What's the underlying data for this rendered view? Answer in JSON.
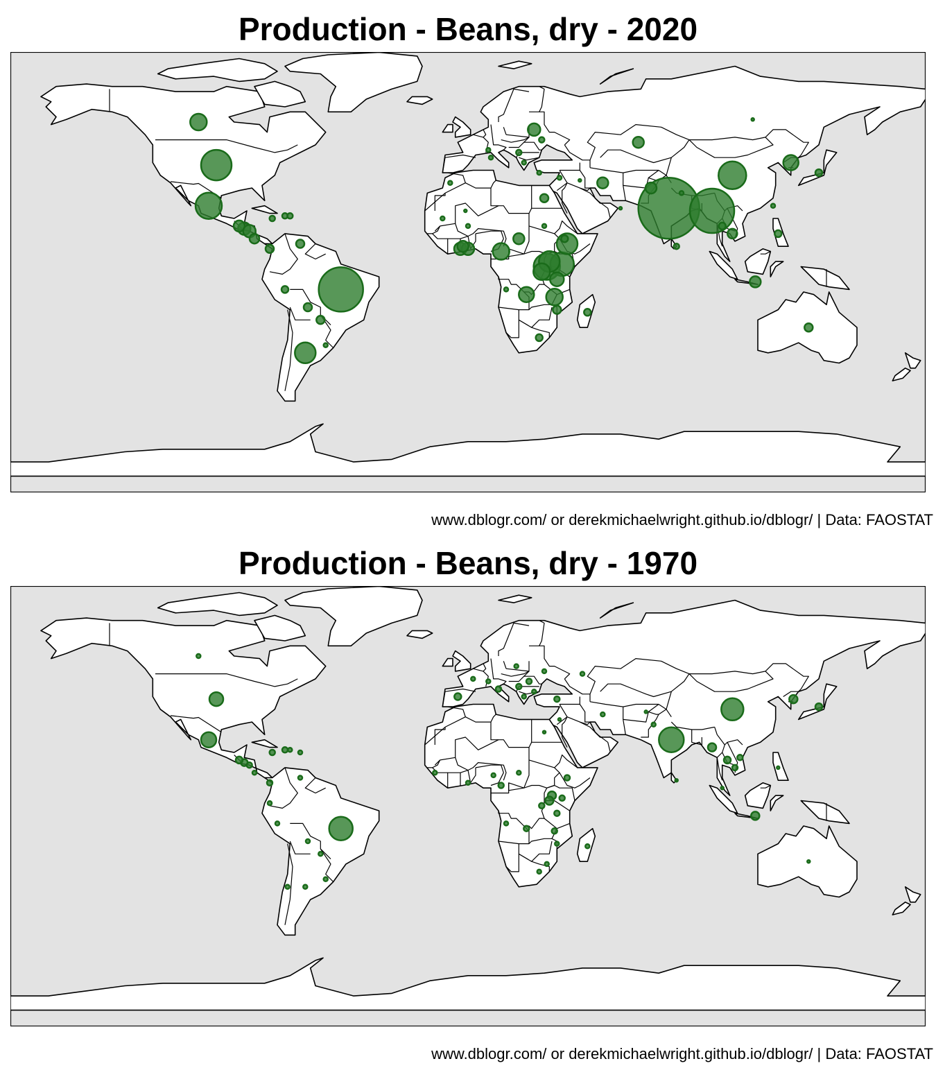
{
  "colors": {
    "ocean": "#e3e3e3",
    "land": "#ffffff",
    "border": "#000000",
    "bubble_fill": "#2e7d2e",
    "bubble_stroke": "#1a6b1a"
  },
  "caption_text": "www.dblogr.com/ or derekmichaelwright.github.io/dblogr/ | Data: FAOSTAT",
  "maps": [
    {
      "title": "Production - Beans, dry - 2020",
      "chart_data": {
        "type": "bubble-map",
        "projection": "equirectangular",
        "metric": "production",
        "points": [
          {
            "lon": -50,
            "lat": -10,
            "size": 32
          },
          {
            "lon": 79,
            "lat": 22,
            "size": 44
          },
          {
            "lon": 96,
            "lat": 21,
            "size": 32
          },
          {
            "lon": 104,
            "lat": 35,
            "size": 20
          },
          {
            "lon": -99,
            "lat": 39,
            "size": 22
          },
          {
            "lon": -102,
            "lat": 23,
            "size": 19
          },
          {
            "lon": -106,
            "lat": 56,
            "size": 12
          },
          {
            "lon": 31,
            "lat": -1,
            "size": 19
          },
          {
            "lon": 37,
            "lat": 0,
            "size": 17
          },
          {
            "lon": 32,
            "lat": 1,
            "size": 15
          },
          {
            "lon": 39,
            "lat": 8,
            "size": 15
          },
          {
            "lon": 29,
            "lat": -3,
            "size": 12
          },
          {
            "lon": 34,
            "lat": -13,
            "size": 12
          },
          {
            "lon": 35,
            "lat": -6,
            "size": 10
          },
          {
            "lon": 23,
            "lat": -12,
            "size": 11
          },
          {
            "lon": 13,
            "lat": 5,
            "size": 12
          },
          {
            "lon": -3,
            "lat": 6,
            "size": 9
          },
          {
            "lon": 0,
            "lat": 6,
            "size": 9
          },
          {
            "lon": -2,
            "lat": 7,
            "size": 8
          },
          {
            "lon": -64,
            "lat": -35,
            "size": 15
          },
          {
            "lon": 127,
            "lat": 40,
            "size": 11
          },
          {
            "lon": 67,
            "lat": 48,
            "size": 8
          },
          {
            "lon": 26,
            "lat": 53,
            "size": 9
          },
          {
            "lon": 20,
            "lat": 10,
            "size": 8
          },
          {
            "lon": -88,
            "lat": 14,
            "size": 9
          },
          {
            "lon": -90,
            "lat": 15,
            "size": 8
          },
          {
            "lon": -86,
            "lat": 13,
            "size": 9
          },
          {
            "lon": -84,
            "lat": 10,
            "size": 7
          },
          {
            "lon": 113,
            "lat": -7,
            "size": 8
          },
          {
            "lon": 53,
            "lat": 32,
            "size": 8
          },
          {
            "lon": 72,
            "lat": 30,
            "size": 8
          },
          {
            "lon": 104,
            "lat": 12,
            "size": 7
          },
          {
            "lon": 30,
            "lat": 26,
            "size": 6
          },
          {
            "lon": -78,
            "lat": 6,
            "size": 6
          },
          {
            "lon": -66,
            "lat": 8,
            "size": 6
          },
          {
            "lon": -58,
            "lat": -22,
            "size": 6
          },
          {
            "lon": -63,
            "lat": -17,
            "size": 6
          },
          {
            "lon": -72,
            "lat": -10,
            "size": 5
          },
          {
            "lon": 134,
            "lat": -25,
            "size": 6
          },
          {
            "lon": 47,
            "lat": -19,
            "size": 5
          },
          {
            "lon": 35,
            "lat": -18,
            "size": 6
          },
          {
            "lon": 138,
            "lat": 36,
            "size": 5
          },
          {
            "lon": 122,
            "lat": 12,
            "size": 5
          },
          {
            "lon": 28,
            "lat": -29,
            "size": 5
          },
          {
            "lon": 38,
            "lat": 10,
            "size": 5
          },
          {
            "lon": 100,
            "lat": 15,
            "size": 5
          },
          {
            "lon": 82,
            "lat": 7,
            "size": 4
          },
          {
            "lon": 20,
            "lat": 44,
            "size": 4
          },
          {
            "lon": 29,
            "lat": 49,
            "size": 4
          },
          {
            "lon": -77,
            "lat": 18,
            "size": 4
          },
          {
            "lon": -72,
            "lat": 19,
            "size": 4
          },
          {
            "lon": -70,
            "lat": 19,
            "size": 4
          },
          {
            "lon": -56,
            "lat": -32,
            "size": 3
          },
          {
            "lon": -7,
            "lat": 32,
            "size": 3
          },
          {
            "lon": 0,
            "lat": 15,
            "size": 3
          },
          {
            "lon": -10,
            "lat": 18,
            "size": 3
          },
          {
            "lon": 30,
            "lat": 15,
            "size": 3
          },
          {
            "lon": 36,
            "lat": 34,
            "size": 3
          },
          {
            "lon": 9,
            "lat": 42,
            "size": 3
          },
          {
            "lon": 28,
            "lat": 36,
            "size": 3
          },
          {
            "lon": 60,
            "lat": 22,
            "size": 2
          },
          {
            "lon": 44,
            "lat": 33,
            "size": 2
          },
          {
            "lon": 112,
            "lat": 57,
            "size": 2
          },
          {
            "lon": 84,
            "lat": 28,
            "size": 3
          },
          {
            "lon": 120,
            "lat": 23,
            "size": 3
          },
          {
            "lon": 15,
            "lat": -10,
            "size": 3
          },
          {
            "lon": 8,
            "lat": 45,
            "size": 3
          },
          {
            "lon": -1,
            "lat": 21,
            "size": 2
          },
          {
            "lon": 22,
            "lat": 40,
            "size": 3
          }
        ]
      }
    },
    {
      "title": "Production - Beans, dry - 1970",
      "chart_data": {
        "type": "bubble-map",
        "projection": "equirectangular",
        "metric": "production",
        "points": [
          {
            "lon": -50,
            "lat": -12,
            "size": 17
          },
          {
            "lon": 80,
            "lat": 23,
            "size": 18
          },
          {
            "lon": 104,
            "lat": 35,
            "size": 16
          },
          {
            "lon": -99,
            "lat": 39,
            "size": 10
          },
          {
            "lon": -102,
            "lat": 23,
            "size": 11
          },
          {
            "lon": 128,
            "lat": 39,
            "size": 6
          },
          {
            "lon": 33,
            "lat": 1,
            "size": 6
          },
          {
            "lon": 32,
            "lat": -1,
            "size": 6
          },
          {
            "lon": 113,
            "lat": -7,
            "size": 6
          },
          {
            "lon": 96,
            "lat": 20,
            "size": 6
          },
          {
            "lon": 138,
            "lat": 36,
            "size": 5
          },
          {
            "lon": -4,
            "lat": 40,
            "size": 5
          },
          {
            "lon": 12,
            "lat": 43,
            "size": 4
          },
          {
            "lon": 20,
            "lat": 44,
            "size": 4
          },
          {
            "lon": 24,
            "lat": 46,
            "size": 4
          },
          {
            "lon": 26,
            "lat": 42,
            "size": 3
          },
          {
            "lon": 22,
            "lat": 40,
            "size": 3
          },
          {
            "lon": 35,
            "lat": 39,
            "size": 4
          },
          {
            "lon": 53,
            "lat": 33,
            "size": 3
          },
          {
            "lon": 73,
            "lat": 29,
            "size": 3
          },
          {
            "lon": 102,
            "lat": 15,
            "size": 5
          },
          {
            "lon": 105,
            "lat": 12,
            "size": 4
          },
          {
            "lon": 107,
            "lat": 16,
            "size": 4
          },
          {
            "lon": -88,
            "lat": 14,
            "size": 5
          },
          {
            "lon": -90,
            "lat": 15,
            "size": 5
          },
          {
            "lon": -86,
            "lat": 13,
            "size": 4
          },
          {
            "lon": -84,
            "lat": 10,
            "size": 3
          },
          {
            "lon": -77,
            "lat": 18,
            "size": 4
          },
          {
            "lon": -72,
            "lat": 19,
            "size": 4
          },
          {
            "lon": -70,
            "lat": 19,
            "size": 3
          },
          {
            "lon": -66,
            "lat": 18,
            "size": 3
          },
          {
            "lon": -78,
            "lat": 6,
            "size": 4
          },
          {
            "lon": -66,
            "lat": 8,
            "size": 3
          },
          {
            "lon": -78,
            "lat": -2,
            "size": 3
          },
          {
            "lon": -75,
            "lat": -10,
            "size": 3
          },
          {
            "lon": -58,
            "lat": -22,
            "size": 3
          },
          {
            "lon": -63,
            "lat": -17,
            "size": 3
          },
          {
            "lon": -56,
            "lat": -32,
            "size": 3
          },
          {
            "lon": -64,
            "lat": -35,
            "size": 3
          },
          {
            "lon": -71,
            "lat": -35,
            "size": 3
          },
          {
            "lon": 35,
            "lat": -6,
            "size": 4
          },
          {
            "lon": 37,
            "lat": 0,
            "size": 4
          },
          {
            "lon": 39,
            "lat": 8,
            "size": 4
          },
          {
            "lon": 29,
            "lat": -3,
            "size": 4
          },
          {
            "lon": 34,
            "lat": -13,
            "size": 4
          },
          {
            "lon": 23,
            "lat": -12,
            "size": 4
          },
          {
            "lon": 35,
            "lat": -18,
            "size": 3
          },
          {
            "lon": 13,
            "lat": 5,
            "size": 4
          },
          {
            "lon": 10,
            "lat": 9,
            "size": 3
          },
          {
            "lon": 15,
            "lat": -10,
            "size": 3
          },
          {
            "lon": 20,
            "lat": 10,
            "size": 3
          },
          {
            "lon": -13,
            "lat": 10,
            "size": 3
          },
          {
            "lon": 0,
            "lat": 6,
            "size": 3
          },
          {
            "lon": 28,
            "lat": -29,
            "size": 3
          },
          {
            "lon": 31,
            "lat": -26,
            "size": 3
          },
          {
            "lon": 47,
            "lat": -19,
            "size": 3
          },
          {
            "lon": -106,
            "lat": 56,
            "size": 3
          },
          {
            "lon": 134,
            "lat": -25,
            "size": 2
          },
          {
            "lon": 82,
            "lat": 7,
            "size": 2
          },
          {
            "lon": 30,
            "lat": 26,
            "size": 2
          },
          {
            "lon": 36,
            "lat": 31,
            "size": 2
          },
          {
            "lon": 8,
            "lat": 46,
            "size": 3
          },
          {
            "lon": 2,
            "lat": 47,
            "size": 3
          },
          {
            "lon": 45,
            "lat": 49,
            "size": 3
          },
          {
            "lon": 30,
            "lat": 50,
            "size": 3
          },
          {
            "lon": 19,
            "lat": 52,
            "size": 3
          },
          {
            "lon": 70,
            "lat": 34,
            "size": 2
          },
          {
            "lon": 122,
            "lat": 12,
            "size": 2
          },
          {
            "lon": 100,
            "lat": 4,
            "size": 2
          }
        ]
      }
    }
  ]
}
